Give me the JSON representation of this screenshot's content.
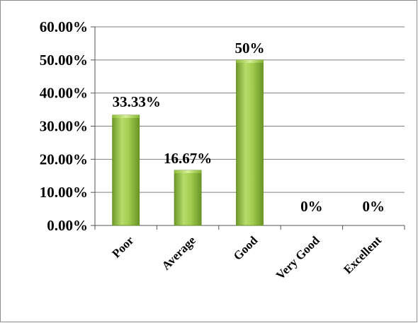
{
  "chart_data": {
    "type": "bar",
    "title": "",
    "xlabel": "",
    "ylabel": "",
    "categories": [
      "Poor",
      "Average",
      "Good",
      "Very Good",
      "Excellent"
    ],
    "values": [
      33.33,
      16.67,
      50,
      0,
      0
    ],
    "data_labels": [
      "33.33%",
      "16.67%",
      "50%",
      "0%",
      "0%"
    ],
    "ylim": [
      0,
      60
    ],
    "yticks": [
      0,
      10,
      20,
      30,
      40,
      50,
      60
    ],
    "ytick_labels": [
      "0.00%",
      "10.00%",
      "20.00%",
      "30.00%",
      "40.00%",
      "50.00%",
      "60.00%"
    ],
    "grid": true,
    "legend": "none",
    "bar_color": "#8cc63f",
    "bar_edge_color": "#5f8a1e",
    "grid_color": "#7f7f7f"
  }
}
